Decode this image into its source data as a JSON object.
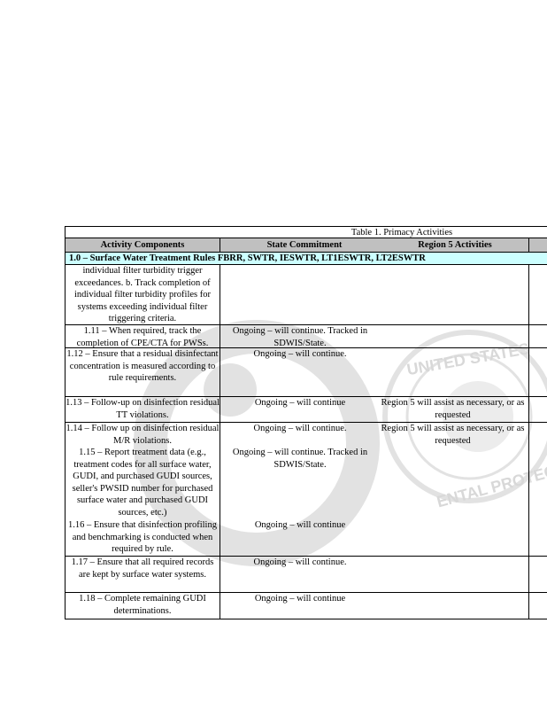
{
  "table": {
    "title": "Table 1. Primacy Activities",
    "headers": [
      "Activity Components",
      "State Commitment",
      "Region 5 Activities"
    ],
    "section": "1.0 – Surface Water Treatment Rules FBRR, SWTR, IESWTR, LT1ESWTR, LT2ESWTR",
    "rows": [
      {
        "activity": "individual filter turbidity trigger exceedances. b. Track completion of individual filter turbidity profiles for systems exceeding individual filter triggering criteria.",
        "state": "",
        "region": ""
      },
      {
        "activity": "1.11 – When required, track the completion of CPE/CTA for PWSs.",
        "state": "Ongoing – will continue. Tracked in SDWIS/State.",
        "region": ""
      },
      {
        "activity": "1.12 – Ensure that a residual disinfectant concentration is measured according to rule requirements.",
        "state": "Ongoing – will continue.",
        "region": ""
      },
      {
        "activity": "1.13 – Follow-up on disinfection residual TT violations.",
        "state": "Ongoing – will continue",
        "region": "Region 5 will assist as necessary, or as requested"
      },
      {
        "activity": "1.14 – Follow up on disinfection residual M/R violations.",
        "state": "Ongoing – will continue.",
        "region": "Region 5 will assist as necessary, or as requested"
      },
      {
        "activity": "1.15 – Report treatment data (e.g., treatment codes for all surface water, GUDI, and purchased GUDI sources, seller's PWSID number for purchased surface water and purchased GUDI sources, etc.)",
        "state": "Ongoing – will continue. Tracked in SDWIS/State.",
        "region": ""
      },
      {
        "activity": "1.16 – Ensure that disinfection profiling and benchmarking is conducted when required by rule.",
        "state": "Ongoing – will continue",
        "region": ""
      },
      {
        "activity": "1.17 – Ensure that all required records are kept by surface water systems.",
        "state": "Ongoing – will continue.",
        "region": ""
      },
      {
        "activity": "1.18 – Complete remaining GUDI determinations.",
        "state": "Ongoing – will continue",
        "region": ""
      }
    ]
  },
  "watermark": {
    "text": [
      "UNITED STATES",
      "ENTAL PROTECT"
    ],
    "color": "#d0d0d0"
  },
  "colors": {
    "section_bg": "#ccffff",
    "header_bg": "#c0c0c0"
  }
}
